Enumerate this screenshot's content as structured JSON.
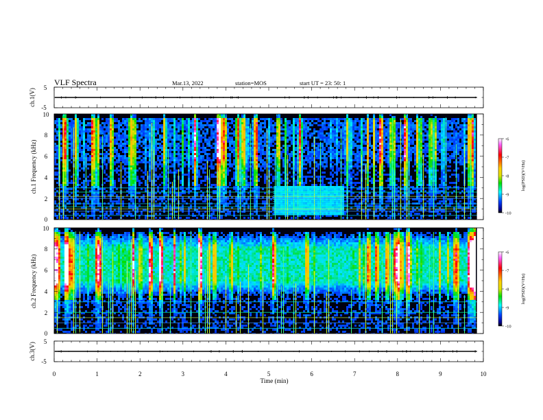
{
  "header": {
    "title": "VLF Spectra",
    "date": "Mar.13, 2022",
    "station": "station=MOS",
    "start_ut": "start  UT  =   23: 50: 1"
  },
  "colors": {
    "colormap": [
      "#ffffff",
      "#ff00ff",
      "#ff0000",
      "#ffc800",
      "#e0e000",
      "#00e000",
      "#00ffff",
      "#0050ff",
      "#000090",
      "#000000"
    ]
  },
  "chart_data": [
    {
      "type": "line",
      "name": "ch.1 waveform",
      "ylabel": "ch.1(V)",
      "ylim": [
        -5,
        5
      ],
      "yticks": [
        "5",
        "-5"
      ],
      "xlim": [
        0,
        10
      ],
      "baseline_v": 0
    },
    {
      "type": "heatmap",
      "name": "ch.1 spectrogram",
      "ylabel": "ch.1 Frequency (kHz)",
      "ylim": [
        0,
        10
      ],
      "yticks": [
        "0",
        "2",
        "4",
        "6",
        "8",
        "10"
      ],
      "xlim": [
        0,
        9.85
      ],
      "colorbar": {
        "label": "log(PSD)(V²/Hz)",
        "range": [
          -10,
          -6
        ],
        "ticks": [
          "-6",
          "-7",
          "-8",
          "-9",
          "-10"
        ]
      },
      "features": {
        "lines_khz": [
          0.4,
          0.8,
          1.0,
          1.2,
          1.5,
          2.0,
          2.2,
          2.6,
          3.0
        ],
        "interference_band": {
          "t_start_min": 5.1,
          "t_end_min": 6.75,
          "f_low_khz": 0.5,
          "f_high_khz": 3.2
        },
        "broadband_peak_khz": [
          6.0,
          9.0
        ]
      }
    },
    {
      "type": "heatmap",
      "name": "ch.2 spectrogram",
      "ylabel": "ch.2 Frequency (kHz)",
      "ylim": [
        0,
        10
      ],
      "yticks": [
        "0",
        "2",
        "4",
        "6",
        "8",
        "10"
      ],
      "xlim": [
        0,
        9.85
      ],
      "colorbar": {
        "label": "log(PSD)(V²/Hz)",
        "range": [
          -10,
          -6
        ],
        "ticks": [
          "-6",
          "-7",
          "-8",
          "-9",
          "-10"
        ]
      },
      "features": {
        "lines_khz": [
          0.5,
          1.0,
          1.5,
          2.0,
          3.0
        ],
        "broadband_peak_khz": [
          5.0,
          8.0
        ]
      }
    },
    {
      "type": "line",
      "name": "ch.3 waveform",
      "ylabel": "ch.3(V)",
      "ylim": [
        -5,
        5
      ],
      "yticks": [
        "5",
        "-5"
      ],
      "xlim": [
        0,
        10
      ],
      "xlabel": "Time  (min)",
      "xticks": [
        "0",
        "1",
        "2",
        "3",
        "4",
        "5",
        "6",
        "7",
        "8",
        "9",
        "10"
      ],
      "baseline_v": 0
    }
  ]
}
